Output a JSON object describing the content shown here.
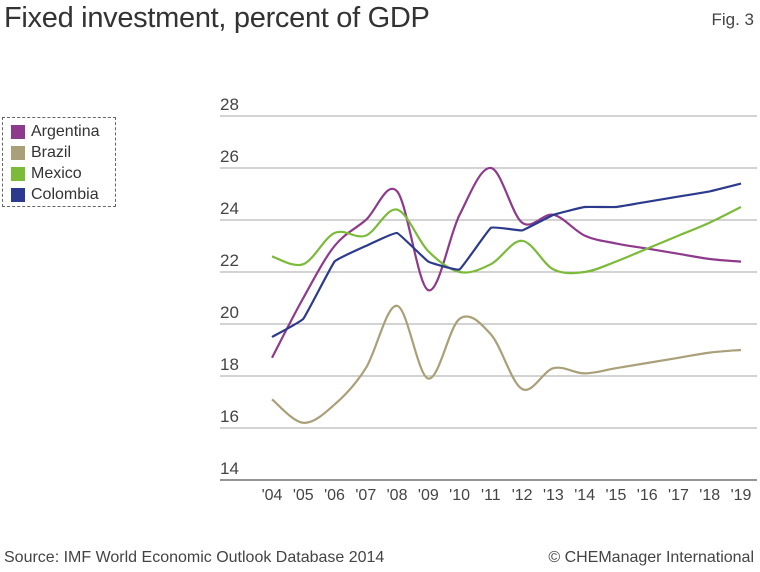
{
  "title": "Fixed investment, percent of GDP",
  "fig_label": "Fig. 3",
  "source": "Source: IMF World Economic Outlook Database 2014",
  "credit": "© CHEManager International",
  "chart_data": {
    "type": "line",
    "title": "Fixed investment, percent of GDP",
    "xlabel": "",
    "ylabel": "",
    "categories": [
      "'04",
      "'05",
      "'06",
      "'07",
      "'08",
      "'09",
      "'10",
      "'11",
      "'12",
      "'13",
      "'14",
      "'15",
      "'16",
      "'17",
      "'18",
      "'19"
    ],
    "ylim": [
      14,
      28
    ],
    "yticks": [
      14,
      16,
      18,
      20,
      22,
      24,
      26,
      28
    ],
    "grid": true,
    "legend_position": "left",
    "series": [
      {
        "name": "Argentina",
        "color": "#8e3a8c",
        "values": [
          18.7,
          21.0,
          23.0,
          24.0,
          25.1,
          21.3,
          24.2,
          26.0,
          23.9,
          24.2,
          23.4,
          23.1,
          22.9,
          22.7,
          22.5,
          22.4
        ]
      },
      {
        "name": "Brazil",
        "color": "#a9a07a",
        "values": [
          17.1,
          16.2,
          16.9,
          18.3,
          20.7,
          17.9,
          20.2,
          19.6,
          17.5,
          18.3,
          18.1,
          18.3,
          18.5,
          18.7,
          18.9,
          19.0
        ]
      },
      {
        "name": "Mexico",
        "color": "#7cba3a",
        "values": [
          22.6,
          22.3,
          23.5,
          23.4,
          24.4,
          22.8,
          22.0,
          22.3,
          23.2,
          22.1,
          22.0,
          22.4,
          22.9,
          23.4,
          23.9,
          24.5
        ]
      },
      {
        "name": "Colombia",
        "color": "#2b3a8c",
        "values": [
          19.5,
          20.2,
          22.4,
          23.0,
          23.5,
          22.4,
          22.1,
          23.7,
          23.6,
          24.2,
          24.5,
          24.5,
          24.7,
          24.9,
          25.1,
          25.4
        ]
      }
    ]
  }
}
